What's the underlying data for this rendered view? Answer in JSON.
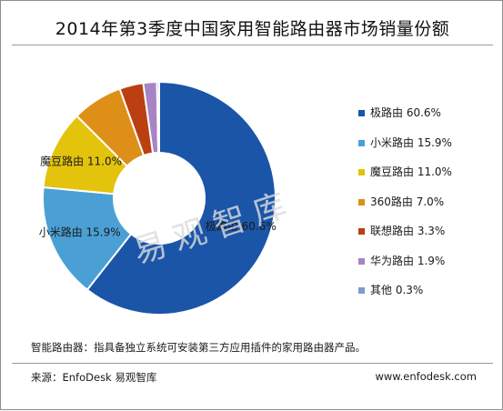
{
  "chart_data": {
    "type": "pie",
    "title": "2014年第3季度中国家用智能路由器市场销量份额",
    "series": [
      {
        "name": "极路由",
        "value": 60.6,
        "label": "极路由 60.6%",
        "color": "#1a55a8"
      },
      {
        "name": "小米路由",
        "value": 15.9,
        "label": "小米路由 15.9%",
        "color": "#4aa0d5"
      },
      {
        "name": "魔豆路由",
        "value": 11.0,
        "label": "魔豆路由 11.0%",
        "color": "#e3c30c"
      },
      {
        "name": "360路由",
        "value": 7.0,
        "label": "360路由 7.0%",
        "color": "#de8f17"
      },
      {
        "name": "联想路由",
        "value": 3.3,
        "label": "联想路由 3.3%",
        "color": "#bb3f10"
      },
      {
        "name": "华为路由",
        "value": 1.9,
        "label": "华为路由 1.9%",
        "color": "#a784c4"
      },
      {
        "name": "其他",
        "value": 0.3,
        "label": "其他 0.3%",
        "color": "#7d9cd2"
      }
    ],
    "data_labels": [
      {
        "series": "极路由",
        "text": "极路由 60.6%"
      },
      {
        "series": "小米路由",
        "text": "小米路由 15.9%"
      },
      {
        "series": "魔豆路由",
        "text": "魔豆路由 11.0%"
      }
    ],
    "legend_position": "right"
  },
  "watermark": "易观智库",
  "footnote": "智能路由器：指具备独立系统可安装第三方应用插件的家用路由器产品。",
  "source": "来源：EnfoDesk 易观智库",
  "website": "www.enfodesk.com"
}
